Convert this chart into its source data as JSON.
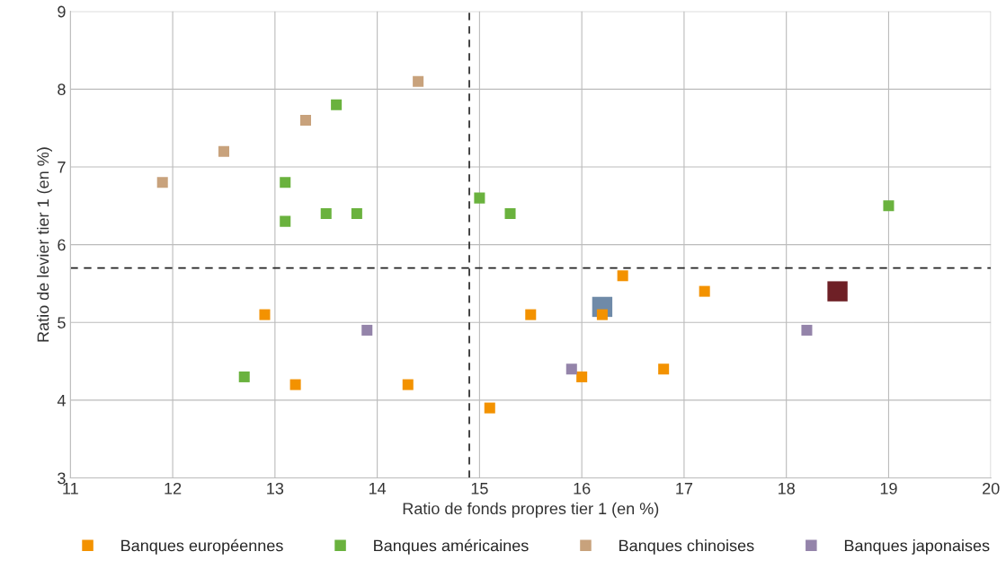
{
  "chart_data": {
    "type": "scatter",
    "xlabel": "Ratio de fonds propres tier 1 (en %)",
    "ylabel": "Ratio de levier tier 1 (en %)",
    "xlim": [
      11,
      20
    ],
    "xticks": [
      11,
      12,
      13,
      14,
      15,
      16,
      17,
      18,
      19,
      20
    ],
    "ylim": [
      3,
      9
    ],
    "yticks": [
      3,
      4,
      5,
      6,
      7,
      8,
      9
    ],
    "grid": true,
    "legend": "bottom",
    "marker": "square",
    "ref_lines": [
      {
        "axis": "x",
        "value": 14.9,
        "line_style": "dashed",
        "color": "#222222"
      },
      {
        "axis": "y",
        "value": 5.7,
        "line_style": "dashed",
        "color": "#222222"
      }
    ],
    "series": [
      {
        "name": "Banques européennes",
        "color": "#f39200",
        "x": [
          12.9,
          13.2,
          14.3,
          15.1,
          15.5,
          16.0,
          16.2,
          16.4,
          16.8,
          17.2
        ],
        "values": [
          5.1,
          4.2,
          4.2,
          3.9,
          5.1,
          4.3,
          5.1,
          5.6,
          4.4,
          5.4
        ]
      },
      {
        "name": "Banques américaines",
        "color": "#6ab23e",
        "x": [
          12.7,
          13.1,
          13.1,
          13.5,
          13.8,
          13.6,
          15.0,
          15.3,
          19.0
        ],
        "values": [
          4.3,
          6.3,
          6.8,
          6.4,
          6.4,
          7.8,
          6.6,
          6.4,
          6.5
        ]
      },
      {
        "name": "Banques chinoises",
        "color": "#c8a27c",
        "x": [
          11.9,
          12.5,
          13.3,
          14.4
        ],
        "values": [
          6.8,
          7.2,
          7.6,
          8.1
        ]
      },
      {
        "name": "Banques japonaises",
        "color": "#9484aa",
        "x": [
          13.9,
          15.9,
          18.2
        ],
        "values": [
          4.9,
          4.4,
          4.9
        ]
      },
      {
        "color": "#6f8aa8",
        "x": [
          16.2
        ],
        "values": [
          5.2
        ]
      },
      {
        "color": "#6e2026",
        "x": [
          18.5
        ],
        "values": [
          5.4
        ]
      }
    ]
  }
}
